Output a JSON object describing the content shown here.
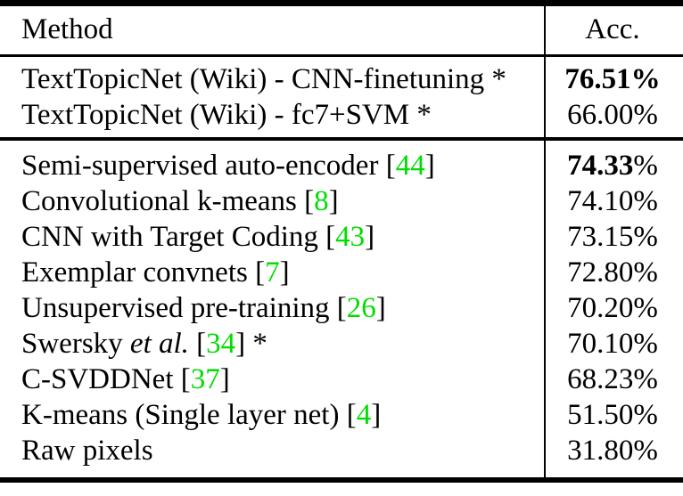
{
  "table": {
    "header": {
      "method_label": "Method",
      "acc_label": "Acc."
    },
    "columns": [
      "Method",
      "Acc."
    ],
    "sections": [
      {
        "name": "texttopicnet-results",
        "rows": [
          {
            "method": [
              {
                "t": "TextTopicNet (Wiki) - CNN-finetuning *"
              }
            ],
            "acc": [
              {
                "t": "76.51%",
                "b": true
              }
            ]
          },
          {
            "method": [
              {
                "t": "TextTopicNet (Wiki) - fc7+SVM *"
              }
            ],
            "acc": [
              {
                "t": "66.00%"
              }
            ]
          }
        ]
      },
      {
        "name": "baseline-results",
        "rows": [
          {
            "method": [
              {
                "t": "Semi-supervised auto-encoder ["
              },
              {
                "t": "44",
                "c": true
              },
              {
                "t": "]"
              }
            ],
            "acc": [
              {
                "t": "74.33",
                "b": true
              },
              {
                "t": "%"
              }
            ]
          },
          {
            "method": [
              {
                "t": "Convolutional k-means ["
              },
              {
                "t": "8",
                "c": true
              },
              {
                "t": "]"
              }
            ],
            "acc": [
              {
                "t": "74.10%"
              }
            ]
          },
          {
            "method": [
              {
                "t": "CNN with Target Coding ["
              },
              {
                "t": "43",
                "c": true
              },
              {
                "t": "]"
              }
            ],
            "acc": [
              {
                "t": "73.15%"
              }
            ]
          },
          {
            "method": [
              {
                "t": "Exemplar convnets ["
              },
              {
                "t": "7",
                "c": true
              },
              {
                "t": "]"
              }
            ],
            "acc": [
              {
                "t": "72.80%"
              }
            ]
          },
          {
            "method": [
              {
                "t": "Unsupervised pre-training ["
              },
              {
                "t": "26",
                "c": true
              },
              {
                "t": "]"
              }
            ],
            "acc": [
              {
                "t": "70.20%"
              }
            ]
          },
          {
            "method": [
              {
                "t": "Swersky "
              },
              {
                "t": "et al.",
                "i": true
              },
              {
                "t": " ["
              },
              {
                "t": "34",
                "c": true
              },
              {
                "t": "] *"
              }
            ],
            "acc": [
              {
                "t": "70.10%"
              }
            ]
          },
          {
            "method": [
              {
                "t": "C-SVDDNet ["
              },
              {
                "t": "37",
                "c": true
              },
              {
                "t": "]"
              }
            ],
            "acc": [
              {
                "t": "68.23%"
              }
            ]
          },
          {
            "method": [
              {
                "t": "K-means (Single layer net) ["
              },
              {
                "t": "4",
                "c": true
              },
              {
                "t": "]"
              }
            ],
            "acc": [
              {
                "t": "51.50%"
              }
            ]
          },
          {
            "method": [
              {
                "t": "Raw pixels"
              }
            ],
            "acc": [
              {
                "t": "31.80%"
              }
            ]
          }
        ]
      }
    ]
  },
  "colors": {
    "citation_green": "#00dd00",
    "rule_black": "#000000",
    "background": "#ffffff",
    "text": "#000000"
  }
}
